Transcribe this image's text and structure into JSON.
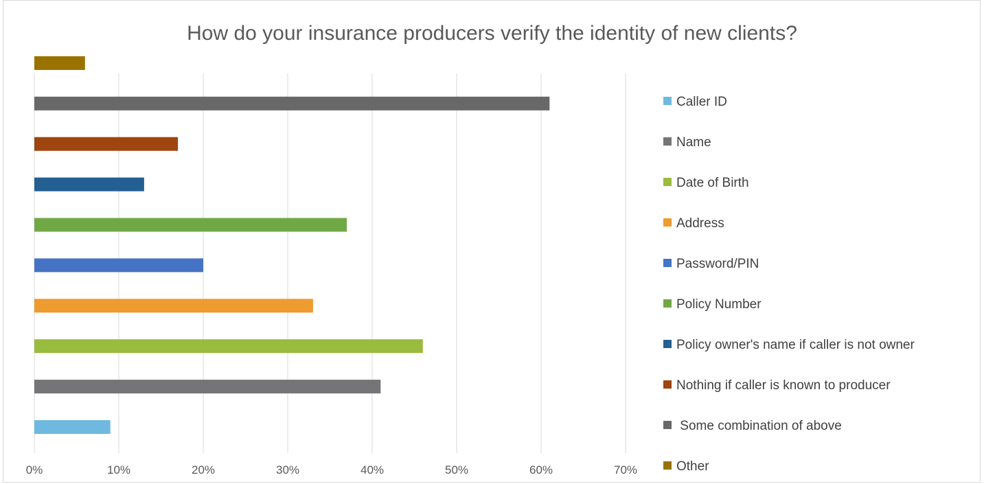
{
  "chart_data": {
    "type": "bar",
    "orientation": "horizontal",
    "title": "How do your insurance producers verify the identity of new clients?",
    "xlabel": "",
    "ylabel": "",
    "xlim": [
      0,
      70
    ],
    "x_tick_labels": [
      "0%",
      "10%",
      "20%",
      "30%",
      "40%",
      "50%",
      "60%",
      "70%"
    ],
    "grid": true,
    "legend_position": "right",
    "categories": [
      "Caller ID",
      "Name",
      "Date of Birth",
      "Address",
      "Password/PIN",
      "Policy Number",
      "Policy owner's name if caller is not owner",
      "Nothing if caller is known to producer",
      " Some combination of above",
      "Other"
    ],
    "values": [
      9,
      41,
      46,
      33,
      20,
      37,
      13,
      17,
      61,
      6
    ],
    "colors": [
      "#6fb9e0",
      "#757578",
      "#99bb3e",
      "#ee9b2f",
      "#4574c4",
      "#70a846",
      "#245f91",
      "#9e4510",
      "#686868",
      "#9a7200"
    ]
  }
}
